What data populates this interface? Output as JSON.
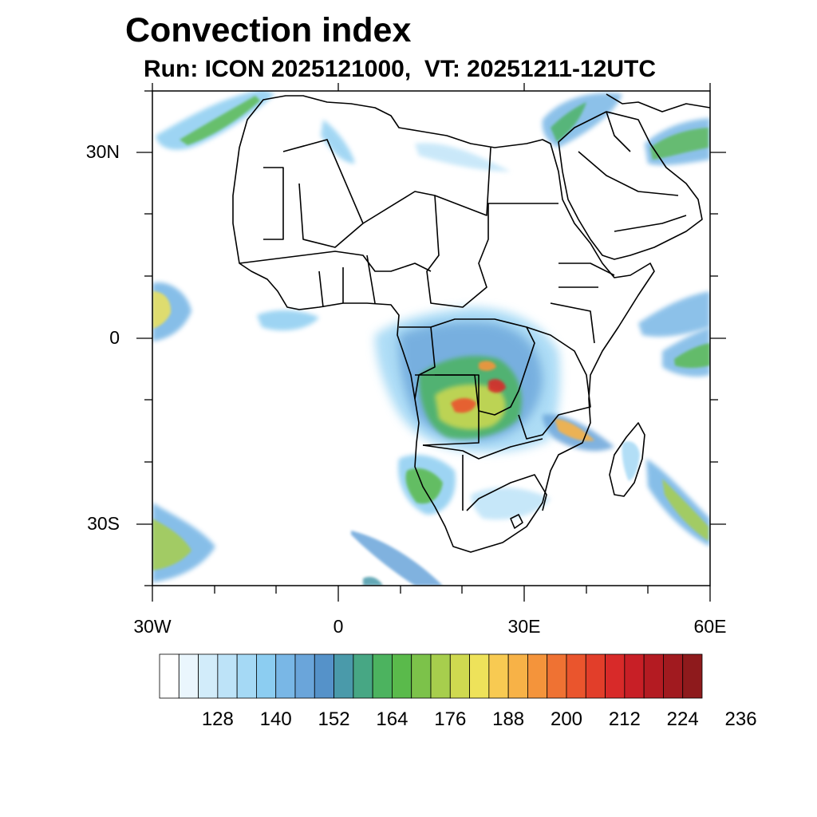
{
  "title": "Convection index",
  "subtitle": "Run: ICON 2025121000,  VT: 20251211-12UTC",
  "map": {
    "extent": {
      "lon": [
        -30,
        60
      ],
      "lat": [
        -40,
        40
      ]
    },
    "lat_labels": [
      "30N",
      "0",
      "30S"
    ],
    "lon_labels": [
      "30W",
      "0",
      "30E",
      "60E"
    ],
    "background": "#ffffff",
    "border_color": "#000000"
  },
  "colorbar": {
    "colors": [
      "#ffffff",
      "#eaf6fd",
      "#d2ecfa",
      "#bde3f8",
      "#a5d9f5",
      "#8ccdf1",
      "#79b7e6",
      "#6aa5da",
      "#5592c9",
      "#4a9aaa",
      "#47a784",
      "#4cb35f",
      "#5aba4b",
      "#7cc24a",
      "#a7ce4d",
      "#cfd950",
      "#eee25a",
      "#f8ca52",
      "#f7b247",
      "#f4943b",
      "#ef7233",
      "#ea552d",
      "#e23e2a",
      "#d82a29",
      "#c81f26",
      "#b41b22",
      "#a11a1f",
      "#8e1a1c"
    ],
    "labels": [
      "128",
      "140",
      "152",
      "164",
      "176",
      "188",
      "200",
      "212",
      "224",
      "236"
    ]
  }
}
